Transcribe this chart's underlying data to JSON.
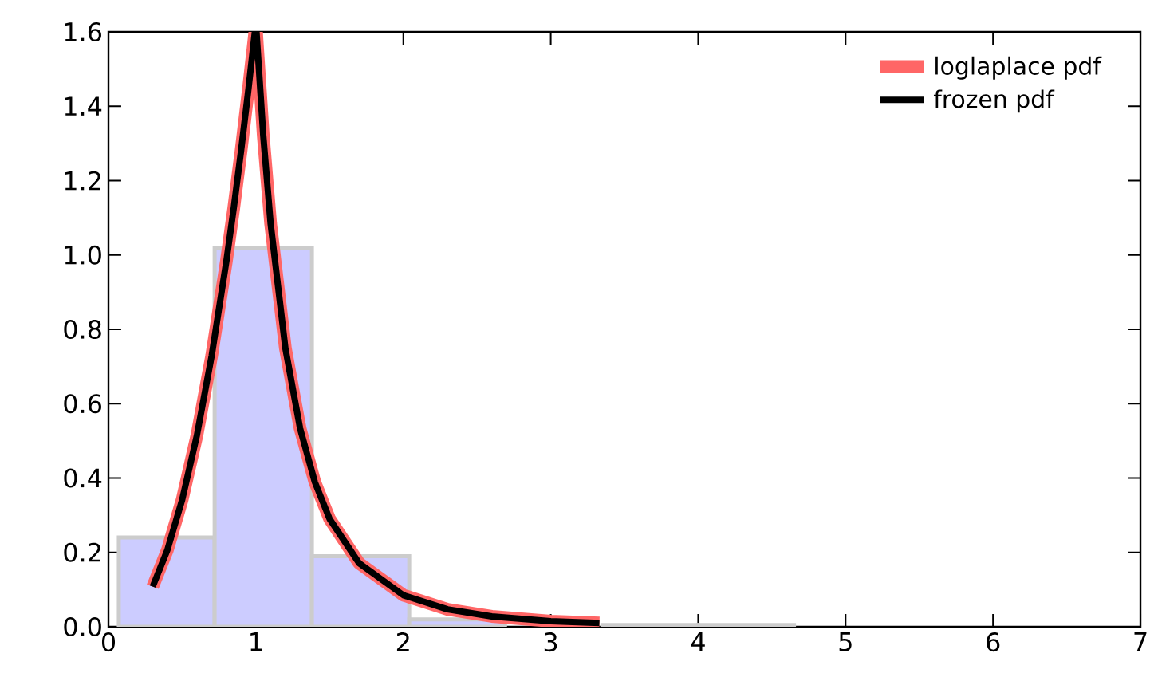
{
  "chart_data": {
    "type": "histogram",
    "series": [
      {
        "bins": [
          0.07,
          0.72,
          1.38,
          2.04,
          2.69,
          3.35,
          4.0,
          4.65
        ],
        "values": [
          0.24,
          1.02,
          0.19,
          0.02,
          null,
          0.005,
          0.005
        ],
        "color": "#ccccff"
      },
      {
        "type": "line",
        "name": "loglaplace pdf",
        "color": "#ff6666",
        "x": [
          0.3,
          0.4,
          0.5,
          0.6,
          0.7,
          0.8,
          0.85,
          0.9,
          0.95,
          0.993,
          1.004,
          1.05,
          1.1,
          1.2,
          1.3,
          1.4,
          1.5,
          1.7,
          2.0,
          2.3,
          2.6,
          3.0,
          3.33
        ],
        "values": [
          0.108,
          0.207,
          0.342,
          0.515,
          0.729,
          0.984,
          1.127,
          1.282,
          1.448,
          1.6,
          1.6,
          1.321,
          1.084,
          0.749,
          0.533,
          0.389,
          0.29,
          0.171,
          0.085,
          0.047,
          0.028,
          0.015,
          0.01
        ]
      },
      {
        "type": "line",
        "name": "frozen pdf",
        "color": "#000000",
        "x": [
          0.3,
          0.4,
          0.5,
          0.6,
          0.7,
          0.8,
          0.85,
          0.9,
          0.95,
          0.993,
          1.004,
          1.05,
          1.1,
          1.2,
          1.3,
          1.4,
          1.5,
          1.7,
          2.0,
          2.3,
          2.6,
          3.0,
          3.33
        ],
        "values": [
          0.108,
          0.207,
          0.342,
          0.515,
          0.729,
          0.984,
          1.127,
          1.282,
          1.448,
          1.6,
          1.6,
          1.321,
          1.084,
          0.749,
          0.533,
          0.389,
          0.29,
          0.171,
          0.085,
          0.047,
          0.028,
          0.015,
          0.01
        ]
      }
    ],
    "xlim": [
      0,
      7
    ],
    "ylim": [
      0,
      1.6
    ],
    "xticks": [
      0,
      1,
      2,
      3,
      4,
      5,
      6,
      7
    ],
    "yticks": [
      {
        "value": 0,
        "label": "0.0"
      },
      {
        "value": 0.2,
        "label": "0.2"
      },
      {
        "value": 0.4,
        "label": "0.4"
      },
      {
        "value": 0.6,
        "label": "0.6"
      },
      {
        "value": 0.8,
        "label": "0.8"
      },
      {
        "value": 1.0,
        "label": "1.0"
      },
      {
        "value": 1.2,
        "label": "1.2"
      },
      {
        "value": 1.4,
        "label": "1.4"
      },
      {
        "value": 1.6,
        "label": "1.6"
      }
    ],
    "legend": "top right"
  }
}
